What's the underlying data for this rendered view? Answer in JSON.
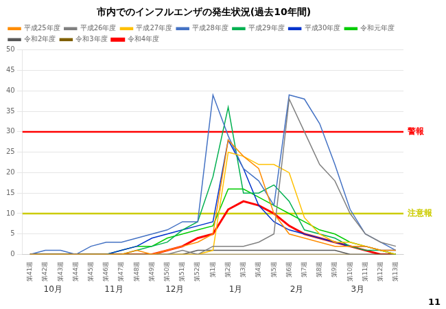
{
  "chart_data": {
    "type": "line",
    "title": "市内でのインフルエンザの発生状況(過去10年間)",
    "categories": [
      "第41週",
      "第42週",
      "第43週",
      "第44週",
      "第45週",
      "第46週",
      "第47週",
      "第48週",
      "第49週",
      "第50週",
      "第51週",
      "第52週",
      "第1週",
      "第2週",
      "第3週",
      "第4週",
      "第5週",
      "第6週",
      "第7週",
      "第8週",
      "第9週",
      "第10週",
      "第11週",
      "第12週",
      "第13週"
    ],
    "month_labels": [
      "10月",
      "11月",
      "12月",
      "1月",
      "2月",
      "3月"
    ],
    "series": [
      {
        "name": "平成25年度",
        "color": "#FF8C00",
        "values": [
          0,
          0,
          0,
          0,
          0,
          0,
          0,
          1,
          0,
          1,
          2,
          3,
          5,
          28,
          24,
          21,
          10,
          5,
          4,
          3,
          2,
          2,
          2,
          1,
          1
        ]
      },
      {
        "name": "平成26年度",
        "color": "#808080",
        "values": [
          0,
          0,
          0,
          0,
          0,
          0,
          0,
          0,
          0,
          0,
          1,
          0,
          2,
          2,
          2,
          3,
          5,
          38,
          30,
          22,
          18,
          10,
          5,
          3,
          2
        ]
      },
      {
        "name": "平成27年度",
        "color": "#FFC000",
        "values": [
          0,
          0,
          0,
          0,
          0,
          0,
          0,
          0,
          0,
          0,
          0,
          0,
          1,
          25,
          24,
          22,
          22,
          20,
          9,
          5,
          3,
          3,
          2,
          1,
          0
        ]
      },
      {
        "name": "平成28年度",
        "color": "#4472C4",
        "values": [
          0,
          1,
          1,
          0,
          2,
          3,
          3,
          4,
          5,
          6,
          8,
          8,
          39,
          29,
          21,
          18,
          12,
          39,
          38,
          32,
          22,
          11,
          5,
          3,
          1
        ]
      },
      {
        "name": "平成29年度",
        "color": "#00B050",
        "values": [
          0,
          0,
          0,
          0,
          0,
          0,
          0,
          1,
          2,
          3,
          6,
          8,
          19,
          36,
          15,
          15,
          17,
          13,
          6,
          5,
          4,
          2,
          1,
          1,
          0
        ]
      },
      {
        "name": "平成30年度",
        "color": "#0033CC",
        "values": [
          0,
          0,
          0,
          0,
          0,
          0,
          1,
          2,
          4,
          5,
          6,
          7,
          8,
          28,
          21,
          12,
          8,
          6,
          5,
          4,
          3,
          2,
          2,
          1,
          1
        ]
      },
      {
        "name": "令和元年度",
        "color": "#00CC00",
        "values": [
          0,
          0,
          0,
          0,
          0,
          0,
          1,
          2,
          2,
          4,
          5,
          6,
          7,
          16,
          16,
          14,
          12,
          10,
          8,
          6,
          5,
          3,
          2,
          1,
          0
        ]
      },
      {
        "name": "令和2年度",
        "color": "#595959",
        "values": [
          0,
          0,
          0,
          0,
          0,
          0,
          0,
          0,
          0,
          0,
          0,
          1,
          1,
          1,
          1,
          1,
          1,
          1,
          1,
          1,
          1,
          0,
          0,
          0,
          0
        ]
      },
      {
        "name": "令和3年度",
        "color": "#806000",
        "values": [
          0,
          0,
          0,
          0,
          0,
          0,
          0,
          0,
          0,
          0,
          0,
          0,
          0,
          0,
          0,
          0,
          0,
          0,
          0,
          0,
          0,
          0,
          0,
          0,
          0
        ]
      },
      {
        "name": "令和4年度",
        "color": "#FF0000",
        "values": [
          0,
          0,
          0,
          0,
          0,
          0,
          0,
          0,
          0,
          1,
          2,
          4,
          5,
          11,
          13,
          12,
          10,
          7,
          5,
          4,
          3,
          2,
          1,
          0,
          0
        ]
      }
    ],
    "annotations": [
      {
        "text": "警報",
        "y": 30,
        "color": "#FF0000"
      },
      {
        "text": "注意報",
        "y": 10,
        "color": "#CCCC00"
      }
    ],
    "page_number": "11",
    "ylim": [
      0,
      50
    ],
    "yticks": [
      0,
      5,
      10,
      15,
      20,
      25,
      30,
      35,
      40,
      45,
      50
    ],
    "grid": true,
    "legend": "top"
  }
}
